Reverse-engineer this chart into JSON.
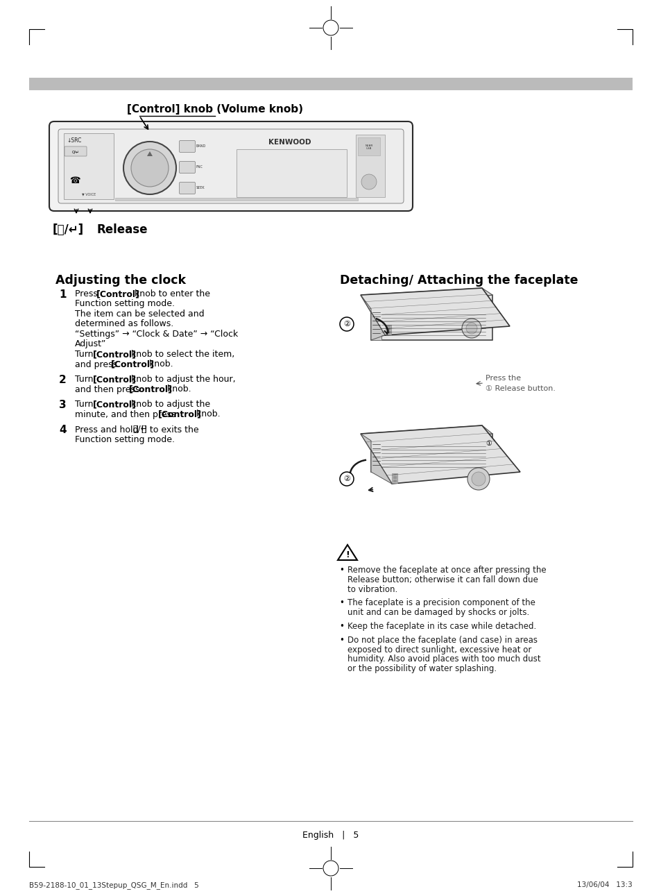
{
  "page_bg": "#ffffff",
  "gray_bar_color": "#bbbbbb",
  "footer_text_left": "B59-2188-10_01_13Stepup_QSG_M_En.indd   5",
  "footer_text_right": "13/06/04   13:3",
  "footer_page_text": "English   |   5",
  "device_label": "[Control] knob (Volume knob)",
  "section1_title": "Adjusting the clock",
  "section2_title": "Detaching/ Attaching the faceplate",
  "press_release_note_line1": "Press the",
  "press_release_note_line2": "① Release button.",
  "warning_bullets": [
    "Remove the faceplate at once after pressing the Release button; otherwise it can fall down due to vibration.",
    "The faceplate is a precision component of the unit and can be damaged by shocks or jolts.",
    "Keep the faceplate in its case while detached.",
    "Do not place the faceplate (and case) in areas exposed to direct sunlight, excessive heat or humidity. Also avoid places with too much dust or the possibility of water splashing."
  ],
  "step1_lines": [
    [
      [
        "Press ",
        false
      ],
      [
        "[Control]",
        true
      ],
      [
        " knob to enter the",
        false
      ]
    ],
    [
      [
        "Function setting mode.",
        false
      ]
    ],
    [
      [
        "The item can be selected and",
        false
      ]
    ],
    [
      [
        "determined as follows.",
        false
      ]
    ],
    [
      [
        "“Settings” → “Clock & Date” → “Clock",
        false
      ]
    ],
    [
      [
        "Adjust”",
        false
      ]
    ],
    [
      [
        "Turn ",
        false
      ],
      [
        "[Control]",
        true
      ],
      [
        " knob to select the item,",
        false
      ]
    ],
    [
      [
        "and press ",
        false
      ],
      [
        "[Control]",
        true
      ],
      [
        " knob.",
        false
      ]
    ]
  ],
  "step2_lines": [
    [
      [
        "Turn ",
        false
      ],
      [
        "[Control]",
        true
      ],
      [
        " knob to adjust the hour,",
        false
      ]
    ],
    [
      [
        "and then press ",
        false
      ],
      [
        "[Control]",
        true
      ],
      [
        " knob.",
        false
      ]
    ]
  ],
  "step3_lines": [
    [
      [
        "Turn ",
        false
      ],
      [
        "[Control]",
        true
      ],
      [
        " knob to adjust the",
        false
      ]
    ],
    [
      [
        "minute, and then press ",
        false
      ],
      [
        "[Control]",
        true
      ],
      [
        " knob.",
        false
      ]
    ]
  ],
  "step4_lines": [
    [
      [
        "Press and hold [",
        false
      ],
      [
        "ᴤ/↵",
        false
      ],
      [
        "] to exits the",
        false
      ]
    ],
    [
      [
        "Function setting mode.",
        false
      ]
    ]
  ]
}
